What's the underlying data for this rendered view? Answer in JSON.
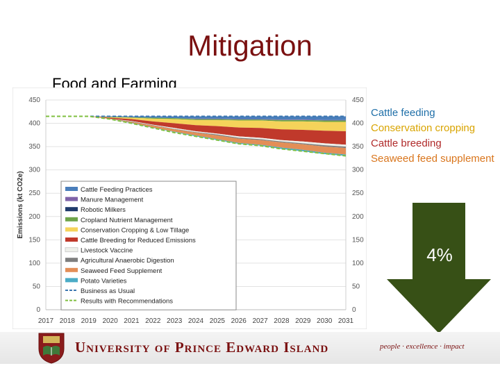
{
  "slide": {
    "title": "Mitigation",
    "subtitle": "Food and Farming"
  },
  "callouts": [
    {
      "label": "Cattle feeding",
      "color": "#1f6fa8"
    },
    {
      "label": "Conservation cropping",
      "color": "#d9a400"
    },
    {
      "label": "Cattle breeding",
      "color": "#b02a2a"
    },
    {
      "label": "Seaweed feed supplement",
      "color": "#d9751c"
    }
  ],
  "reduction": {
    "label": "4%",
    "color": "#375016"
  },
  "footer": {
    "university": "University of Prince Edward Island",
    "motto": "people · excellence · impact"
  },
  "chart_data": {
    "type": "area",
    "ylabel": "Emissions (kt CO2e)",
    "ylim": [
      0,
      450
    ],
    "yticks": [
      0,
      50,
      100,
      150,
      200,
      250,
      300,
      350,
      400,
      450
    ],
    "categories": [
      "2017",
      "2018",
      "2019",
      "2020",
      "2021",
      "2022",
      "2023",
      "2024",
      "2025",
      "2026",
      "2027",
      "2028",
      "2029",
      "2030",
      "2031"
    ],
    "baseline": [
      415,
      415,
      415,
      415,
      415,
      415,
      415,
      415,
      415,
      415,
      415,
      415,
      415,
      415,
      415
    ],
    "series": [
      {
        "name": "Cattle Feeding Practices",
        "color": "#4a7ebb",
        "values": [
          0,
          0,
          0,
          1,
          2,
          3,
          4,
          5,
          5,
          6,
          6,
          7,
          7,
          8,
          8
        ]
      },
      {
        "name": "Manure Management",
        "color": "#7f63a8",
        "values": [
          0,
          0,
          0,
          0,
          0,
          0,
          0,
          1,
          1,
          1,
          1,
          1,
          1,
          1,
          1
        ]
      },
      {
        "name": "Robotic Milkers",
        "color": "#1f3a6b",
        "values": [
          0,
          0,
          0,
          0,
          0,
          0,
          0,
          0,
          0,
          0,
          0,
          0,
          0,
          0,
          0
        ]
      },
      {
        "name": "Cropland Nutrient Management",
        "color": "#6ea44a",
        "values": [
          0,
          0,
          0,
          1,
          1,
          2,
          2,
          2,
          2,
          2,
          2,
          3,
          3,
          3,
          3
        ]
      },
      {
        "name": "Conservation Cropping & Low Tillage",
        "color": "#f5d35a",
        "values": [
          0,
          0,
          0,
          1,
          3,
          6,
          9,
          11,
          13,
          15,
          16,
          17,
          18,
          19,
          20
        ]
      },
      {
        "name": "Cattle Breeding for Reduced Emissions",
        "color": "#c0392b",
        "values": [
          0,
          0,
          0,
          2,
          4,
          7,
          10,
          13,
          16,
          19,
          21,
          23,
          25,
          27,
          29
        ]
      },
      {
        "name": "Livestock Vaccine",
        "color": "#eef0ea",
        "values": [
          0,
          0,
          0,
          0,
          1,
          1,
          2,
          2,
          2,
          3,
          3,
          3,
          4,
          4,
          4
        ]
      },
      {
        "name": "Agricultural Anaerobic Digestion",
        "color": "#7f7f7f",
        "values": [
          0,
          0,
          0,
          0,
          1,
          1,
          1,
          1,
          2,
          2,
          2,
          2,
          2,
          3,
          3
        ]
      },
      {
        "name": "Seaweed Feed Supplement",
        "color": "#e38e57",
        "values": [
          0,
          0,
          0,
          1,
          2,
          4,
          5,
          6,
          8,
          9,
          10,
          11,
          12,
          13,
          14
        ]
      },
      {
        "name": "Potato Varieties",
        "color": "#4bacc6",
        "values": [
          0,
          0,
          0,
          0,
          1,
          1,
          1,
          2,
          2,
          2,
          2,
          3,
          3,
          3,
          3
        ]
      }
    ],
    "lines": [
      {
        "name": "Business as Usual",
        "color": "#3b77b0",
        "values": [
          415,
          415,
          415,
          415,
          415,
          415,
          415,
          415,
          415,
          415,
          415,
          415,
          415,
          415,
          415
        ]
      },
      {
        "name": "Results with Recommendations",
        "color": "#7fbf3f",
        "values": [
          415,
          415,
          415,
          409,
          400,
          390,
          380,
          372,
          364,
          356,
          352,
          345,
          340,
          335,
          330
        ]
      }
    ]
  }
}
